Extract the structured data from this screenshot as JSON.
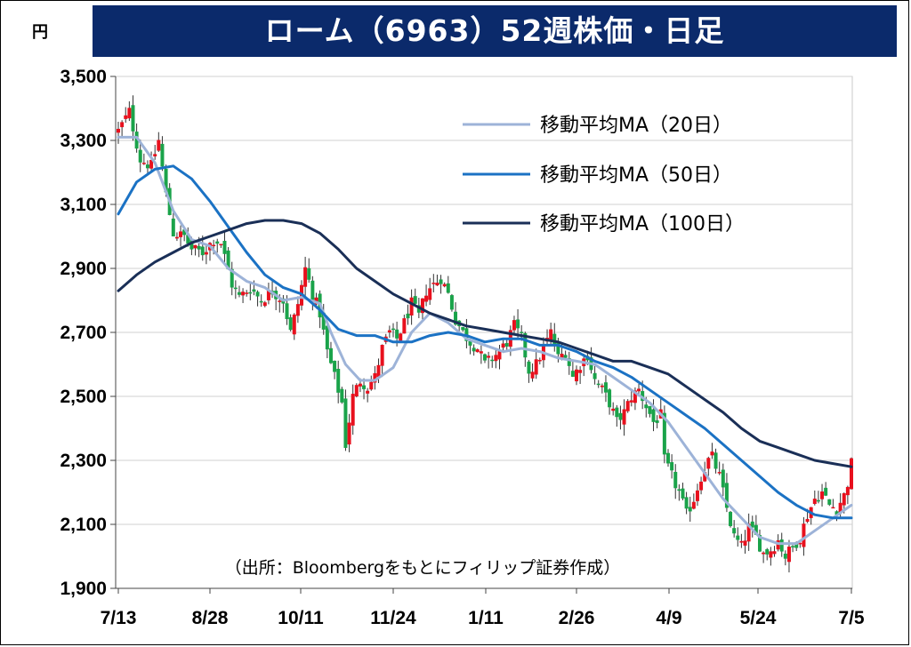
{
  "title": "ローム（6963）52週株価・日足",
  "unit": "円",
  "source": "（出所：Bloombergをもとにフィリップ証券作成）",
  "chart_data": {
    "type": "candlestick",
    "title": "ローム（6963）52週株価・日足",
    "ylabel": "円",
    "ylim": [
      1900,
      3500
    ],
    "yticks": [
      1900,
      2100,
      2300,
      2500,
      2700,
      2900,
      3100,
      3300,
      3500
    ],
    "ytick_labels": [
      "1,900",
      "2,100",
      "2,300",
      "2,500",
      "2,700",
      "2,900",
      "3,100",
      "3,300",
      "3,500"
    ],
    "xticks": [
      "7/13",
      "8/28",
      "10/11",
      "11/24",
      "1/11",
      "2/26",
      "4/9",
      "5/24",
      "7/5"
    ],
    "grid": true,
    "legend_position": "top-right",
    "up_color": "#e8101d",
    "down_color": "#1aa34a",
    "close_anchors": [
      [
        0,
        3330
      ],
      [
        3,
        3390
      ],
      [
        6,
        3240
      ],
      [
        9,
        3220
      ],
      [
        11,
        3300
      ],
      [
        13,
        3130
      ],
      [
        15,
        3010
      ],
      [
        18,
        3000
      ],
      [
        20,
        2960
      ],
      [
        23,
        2950
      ],
      [
        26,
        2990
      ],
      [
        28,
        2980
      ],
      [
        31,
        2850
      ],
      [
        33,
        2810
      ],
      [
        36,
        2840
      ],
      [
        39,
        2800
      ],
      [
        42,
        2830
      ],
      [
        45,
        2800
      ],
      [
        47,
        2700
      ],
      [
        49,
        2790
      ],
      [
        51,
        2900
      ],
      [
        53,
        2820
      ],
      [
        55,
        2760
      ],
      [
        57,
        2640
      ],
      [
        59,
        2560
      ],
      [
        61,
        2480
      ],
      [
        62,
        2350
      ],
      [
        64,
        2500
      ],
      [
        66,
        2550
      ],
      [
        68,
        2530
      ],
      [
        70,
        2560
      ],
      [
        72,
        2650
      ],
      [
        74,
        2700
      ],
      [
        76,
        2680
      ],
      [
        78,
        2730
      ],
      [
        80,
        2790
      ],
      [
        82,
        2750
      ],
      [
        84,
        2830
      ],
      [
        86,
        2850
      ],
      [
        88,
        2870
      ],
      [
        90,
        2820
      ],
      [
        92,
        2740
      ],
      [
        94,
        2700
      ],
      [
        96,
        2670
      ],
      [
        98,
        2650
      ],
      [
        100,
        2600
      ],
      [
        102,
        2620
      ],
      [
        104,
        2640
      ],
      [
        106,
        2670
      ],
      [
        108,
        2720
      ],
      [
        110,
        2680
      ],
      [
        112,
        2580
      ],
      [
        114,
        2600
      ],
      [
        116,
        2650
      ],
      [
        118,
        2700
      ],
      [
        120,
        2620
      ],
      [
        122,
        2640
      ],
      [
        124,
        2560
      ],
      [
        126,
        2600
      ],
      [
        128,
        2630
      ],
      [
        130,
        2550
      ],
      [
        132,
        2520
      ],
      [
        134,
        2480
      ],
      [
        136,
        2420
      ],
      [
        138,
        2450
      ],
      [
        140,
        2500
      ],
      [
        142,
        2520
      ],
      [
        144,
        2470
      ],
      [
        146,
        2420
      ],
      [
        148,
        2440
      ],
      [
        149,
        2300
      ],
      [
        151,
        2250
      ],
      [
        153,
        2200
      ],
      [
        155,
        2130
      ],
      [
        157,
        2180
      ],
      [
        159,
        2250
      ],
      [
        161,
        2300
      ],
      [
        162,
        2310
      ],
      [
        164,
        2250
      ],
      [
        166,
        2150
      ],
      [
        168,
        2060
      ],
      [
        170,
        2030
      ],
      [
        172,
        2090
      ],
      [
        174,
        2060
      ],
      [
        176,
        2010
      ],
      [
        178,
        2020
      ],
      [
        180,
        2050
      ],
      [
        182,
        2000
      ],
      [
        184,
        2030
      ],
      [
        186,
        2060
      ],
      [
        188,
        2130
      ],
      [
        190,
        2180
      ],
      [
        192,
        2200
      ],
      [
        194,
        2160
      ],
      [
        196,
        2150
      ],
      [
        198,
        2190
      ],
      [
        199,
        2230
      ],
      [
        200,
        2290
      ]
    ],
    "series": [
      {
        "name": "移動平均MA（20日）",
        "color": "#9db3d8",
        "x": [
          0,
          5,
          10,
          15,
          20,
          25,
          30,
          35,
          40,
          45,
          50,
          55,
          58,
          62,
          66,
          70,
          75,
          80,
          85,
          90,
          95,
          100,
          105,
          110,
          115,
          120,
          125,
          130,
          135,
          140,
          145,
          150,
          155,
          160,
          165,
          170,
          175,
          180,
          185,
          190,
          195,
          200
        ],
        "values": [
          3310,
          3310,
          3230,
          3080,
          2990,
          2970,
          2900,
          2860,
          2840,
          2800,
          2810,
          2790,
          2700,
          2600,
          2550,
          2550,
          2590,
          2700,
          2760,
          2730,
          2680,
          2660,
          2640,
          2650,
          2640,
          2620,
          2610,
          2600,
          2560,
          2520,
          2480,
          2420,
          2340,
          2260,
          2180,
          2120,
          2060,
          2040,
          2040,
          2080,
          2120,
          2160
        ]
      },
      {
        "name": "移動平均MA（50日）",
        "color": "#1b72c4",
        "x": [
          0,
          5,
          10,
          15,
          20,
          25,
          30,
          35,
          40,
          45,
          50,
          55,
          60,
          65,
          70,
          75,
          80,
          85,
          90,
          95,
          100,
          105,
          110,
          115,
          120,
          125,
          130,
          135,
          140,
          145,
          150,
          155,
          160,
          165,
          170,
          175,
          180,
          185,
          190,
          195,
          200
        ],
        "values": [
          3070,
          3170,
          3210,
          3220,
          3180,
          3110,
          3030,
          2950,
          2880,
          2840,
          2820,
          2770,
          2710,
          2690,
          2690,
          2670,
          2670,
          2690,
          2700,
          2690,
          2670,
          2680,
          2680,
          2660,
          2660,
          2640,
          2610,
          2590,
          2560,
          2520,
          2480,
          2440,
          2400,
          2350,
          2300,
          2250,
          2200,
          2160,
          2130,
          2120,
          2120
        ]
      },
      {
        "name": "移動平均MA（100日）",
        "color": "#1a2f57",
        "x": [
          0,
          5,
          10,
          15,
          20,
          25,
          30,
          35,
          40,
          45,
          50,
          55,
          60,
          65,
          70,
          75,
          80,
          85,
          90,
          95,
          100,
          105,
          110,
          115,
          120,
          125,
          130,
          135,
          140,
          145,
          150,
          155,
          160,
          165,
          170,
          175,
          180,
          185,
          190,
          195,
          200
        ],
        "values": [
          2830,
          2880,
          2920,
          2950,
          2980,
          3000,
          3020,
          3040,
          3050,
          3050,
          3040,
          3010,
          2960,
          2900,
          2860,
          2820,
          2790,
          2760,
          2740,
          2720,
          2710,
          2700,
          2690,
          2680,
          2670,
          2650,
          2630,
          2610,
          2610,
          2590,
          2570,
          2530,
          2490,
          2450,
          2400,
          2360,
          2340,
          2320,
          2300,
          2290,
          2280
        ]
      }
    ]
  }
}
